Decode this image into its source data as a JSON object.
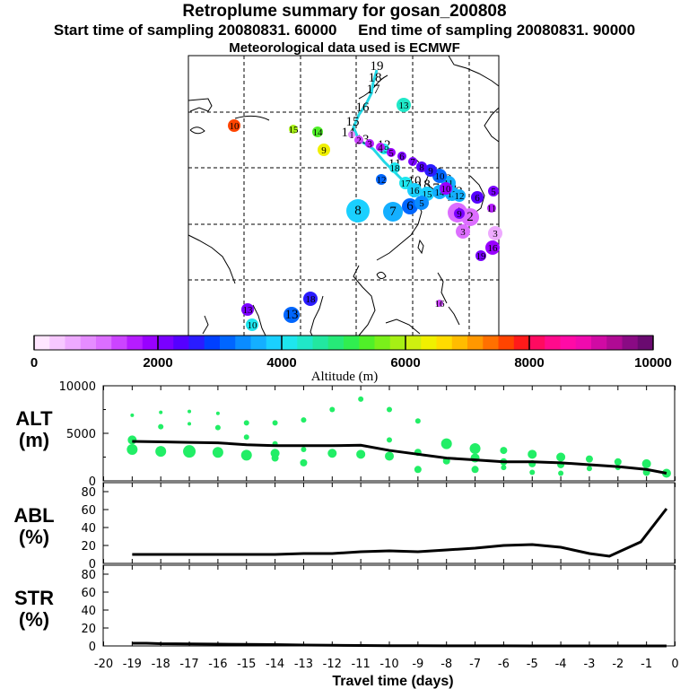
{
  "header": {
    "title": "Retroplume summary for gosan_200808",
    "subtitle": "Start time of sampling 20080831. 60000     End time of sampling 20080831. 90000",
    "met_line": "Meteorological data used is ECMWF"
  },
  "colorbar": {
    "label": "Altitude (m)",
    "ticks": [
      "0",
      "2000",
      "4000",
      "6000",
      "8000",
      "10000"
    ],
    "colors": [
      "#ffe6ff",
      "#f7c8ff",
      "#eeaaff",
      "#e58cff",
      "#dc6eff",
      "#cc44ff",
      "#b61cff",
      "#9900ff",
      "#7a00ff",
      "#5500ff",
      "#2a1cff",
      "#0040ff",
      "#0066ff",
      "#0a8cff",
      "#14afff",
      "#1ad0ff",
      "#1ee6ee",
      "#20e8c8",
      "#22e8a0",
      "#26ea78",
      "#30ee50",
      "#50f028",
      "#7af01a",
      "#a6f014",
      "#cef010",
      "#f0f000",
      "#ffdc00",
      "#ffbc00",
      "#ff9800",
      "#ff7000",
      "#ff4400",
      "#ff1a1a",
      "#ff0a60",
      "#ff0a8c",
      "#ff0aa6",
      "#f00aae",
      "#d00aa4",
      "#b00a94",
      "#8a0a84",
      "#6a0a70"
    ]
  },
  "map": {
    "track_labels": [
      "19",
      "18",
      "17",
      "16",
      "15",
      "14",
      "13",
      "12",
      "11",
      "10",
      "9",
      "8",
      "7",
      "6",
      "5",
      "4",
      "3",
      "2",
      "1"
    ],
    "points": [
      {
        "day": "19",
        "alt": 4200
      },
      {
        "day": "18",
        "alt": 4100
      },
      {
        "day": "17",
        "alt": 4000
      },
      {
        "day": "16",
        "alt": 3900
      },
      {
        "day": "15",
        "alt": 3800
      },
      {
        "day": "14",
        "alt": 3700
      },
      {
        "day": "13",
        "alt": 3700
      },
      {
        "day": "12",
        "alt": 3600
      },
      {
        "day": "11",
        "alt": 3500
      },
      {
        "day": "10",
        "alt": 3000
      },
      {
        "day": "9",
        "alt": 2600
      },
      {
        "day": "8",
        "alt": 2300
      },
      {
        "day": "7",
        "alt": 2200
      },
      {
        "day": "6",
        "alt": 2100
      },
      {
        "day": "5",
        "alt": 1900
      },
      {
        "day": "4",
        "alt": 1700
      },
      {
        "day": "3",
        "alt": 1500
      },
      {
        "day": "2",
        "alt": 1300
      },
      {
        "day": "1",
        "alt": 900
      },
      {
        "day": "10",
        "alt": 7600
      },
      {
        "day": "15",
        "alt": 5800
      },
      {
        "day": "14",
        "alt": 5400
      },
      {
        "day": "9",
        "alt": 6400
      },
      {
        "day": "13",
        "alt": 4400
      },
      {
        "day": "12",
        "alt": 3100
      },
      {
        "day": "8",
        "alt": 3900
      },
      {
        "day": "7",
        "alt": 3700
      },
      {
        "day": "6",
        "alt": 3000
      },
      {
        "day": "5",
        "alt": 3300
      },
      {
        "day": "4",
        "alt": 1200
      },
      {
        "day": "2",
        "alt": 1000
      },
      {
        "day": "3",
        "alt": 1100
      },
      {
        "day": "9",
        "alt": 2000
      },
      {
        "day": "10",
        "alt": 1800
      },
      {
        "day": "6",
        "alt": 2300
      },
      {
        "day": "5",
        "alt": 2100
      },
      {
        "day": "11",
        "alt": 1500
      },
      {
        "day": "3",
        "alt": 600
      },
      {
        "day": "16",
        "alt": 1900
      },
      {
        "day": "19",
        "alt": 2100
      },
      {
        "day": "18",
        "alt": 2600
      },
      {
        "day": "13",
        "alt": 2200
      },
      {
        "day": "13",
        "alt": 3200
      },
      {
        "day": "10",
        "alt": 4200
      },
      {
        "day": "16",
        "alt": 1300
      }
    ]
  },
  "panels": {
    "alt": {
      "label": [
        "ALT",
        "(m)"
      ],
      "ticks": [
        "10000",
        "5000",
        "0"
      ]
    },
    "abl": {
      "label": [
        "ABL",
        "(%)"
      ],
      "ticks": [
        "80",
        "60",
        "40",
        "20",
        "0"
      ]
    },
    "str": {
      "label": [
        "STR",
        "(%)"
      ],
      "ticks": [
        "80",
        "60",
        "40",
        "20",
        "0"
      ]
    }
  },
  "chart_data": [
    {
      "type": "scatter",
      "title": "ALT (m)",
      "xlabel": "Travel time (days)",
      "ylabel": "ALT (m)",
      "xlim": [
        -20,
        0
      ],
      "ylim": [
        0,
        10000
      ],
      "x_ticks": [
        "-20",
        "-19",
        "-18",
        "-17",
        "-16",
        "-15",
        "-14",
        "-13",
        "-12",
        "-11",
        "-10",
        "-9",
        "-8",
        "-7",
        "-6",
        "-5",
        "-4",
        "-3",
        "-2",
        "-1",
        "0"
      ],
      "series": [
        {
          "name": "mean altitude",
          "x": [
            -19,
            -18,
            -17,
            -16,
            -15,
            -14,
            -13,
            -12,
            -11,
            -10,
            -9,
            -8,
            -7,
            -6,
            -5,
            -4,
            -3,
            -2,
            -1,
            -0.3
          ],
          "y": [
            4150,
            4100,
            4050,
            4000,
            3800,
            3700,
            3700,
            3700,
            3750,
            3200,
            2800,
            2400,
            2200,
            2000,
            2000,
            1900,
            1700,
            1500,
            1200,
            800
          ]
        },
        {
          "name": "clusters",
          "x": [
            -19,
            -19,
            -19,
            -18,
            -18,
            -18,
            -17,
            -17,
            -17,
            -16,
            -16,
            -16,
            -15,
            -15,
            -15,
            -14,
            -14,
            -14,
            -14,
            -13,
            -13,
            -13,
            -12,
            -12,
            -11,
            -11,
            -10,
            -10,
            -10,
            -9,
            -9,
            -9,
            -8,
            -8,
            -7,
            -7,
            -7,
            -6,
            -6,
            -6,
            -5,
            -5,
            -5,
            -4,
            -4,
            -4,
            -3,
            -3,
            -2,
            -2,
            -1,
            -1,
            -0.3
          ],
          "y": [
            6900,
            4300,
            3300,
            7200,
            5700,
            3100,
            7300,
            6000,
            3100,
            7100,
            5600,
            3000,
            6100,
            4600,
            2700,
            6100,
            3900,
            2900,
            2400,
            6400,
            3300,
            1900,
            7500,
            2900,
            8600,
            2800,
            7500,
            4300,
            2600,
            6300,
            3000,
            1200,
            3900,
            2100,
            3400,
            2400,
            1200,
            3200,
            2000,
            1400,
            2800,
            1800,
            900,
            2500,
            1700,
            800,
            2300,
            1300,
            2000,
            1400,
            1800,
            900,
            800
          ],
          "s": [
            2,
            5,
            6,
            2,
            3,
            6,
            2,
            2,
            7,
            2,
            3,
            6,
            3,
            3,
            6,
            3,
            3,
            5,
            4,
            3,
            3,
            4,
            3,
            5,
            3,
            5,
            3,
            3,
            5,
            3,
            4,
            4,
            6,
            4,
            6,
            5,
            4,
            4,
            4,
            3,
            5,
            4,
            3,
            5,
            4,
            3,
            4,
            3,
            4,
            3,
            5,
            4,
            5
          ]
        }
      ]
    },
    {
      "type": "line",
      "title": "ABL (%)",
      "xlabel": "Travel time (days)",
      "ylabel": "ABL (%)",
      "xlim": [
        -20,
        0
      ],
      "ylim": [
        0,
        90
      ],
      "series": [
        {
          "name": "ABL",
          "x": [
            -19,
            -18,
            -17,
            -16,
            -15,
            -14,
            -13,
            -12,
            -11,
            -10,
            -9,
            -8,
            -7,
            -6,
            -5,
            -4,
            -3,
            -2.3,
            -1.2,
            -0.3
          ],
          "y": [
            10,
            10,
            10,
            10,
            10,
            10,
            11,
            11,
            13,
            14,
            13,
            15,
            17,
            20,
            21,
            18,
            11,
            8,
            24,
            61
          ]
        }
      ]
    },
    {
      "type": "line",
      "title": "STR (%)",
      "xlabel": "Travel time (days)",
      "ylabel": "STR (%)",
      "xlim": [
        -20,
        0
      ],
      "ylim": [
        0,
        90
      ],
      "series": [
        {
          "name": "STR",
          "x": [
            -19,
            -18.5,
            -18,
            -17,
            -16,
            -15,
            -14,
            -13,
            -12,
            -11,
            -10,
            -9,
            -8,
            -7,
            -6,
            -5,
            -4,
            -3,
            -2,
            -1,
            -0.3
          ],
          "y": [
            3,
            3,
            2.5,
            2.3,
            2,
            1.8,
            1.5,
            1,
            0.7,
            0.5,
            0.3,
            0.2,
            0.1,
            0.1,
            0.1,
            0,
            0,
            0,
            0,
            0,
            0
          ]
        }
      ]
    }
  ],
  "xaxis": {
    "label": "Travel time (days)"
  }
}
